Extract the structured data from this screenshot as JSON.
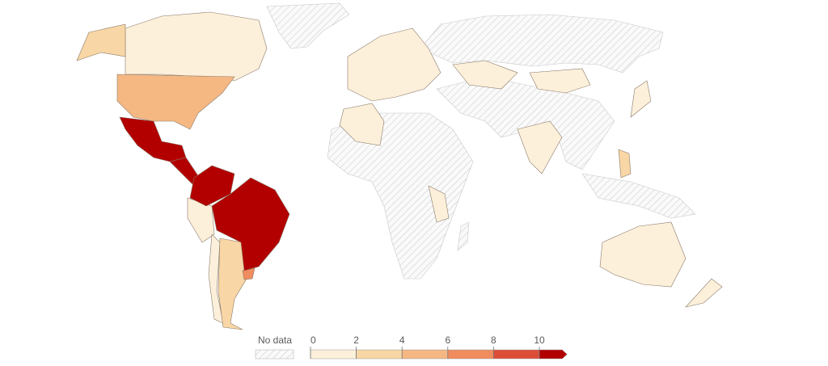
{
  "legend": {
    "no_data_label": "No data",
    "ticks": [
      0,
      2,
      4,
      6,
      8,
      10
    ],
    "max": 11,
    "colors": [
      "#fdf0db",
      "#f8d6a5",
      "#f5b883",
      "#f08c5e",
      "#dc4d38",
      "#b20000"
    ],
    "no_data_color": "#e9e9e9"
  }
}
